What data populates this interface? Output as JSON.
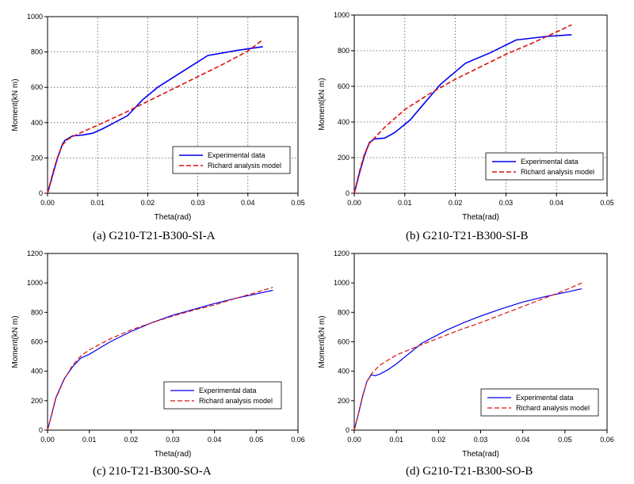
{
  "colors": {
    "experimental": "#0000ee",
    "model": "#dd1111",
    "grid": "#555555",
    "axis": "#000000"
  },
  "chart_data": [
    {
      "type": "line",
      "caption": "(a)  G210-T21-B300-SI-A",
      "xlabel": "Theta(rad)",
      "ylabel": "Moment(kN m)",
      "xlim": [
        0,
        0.05
      ],
      "ylim": [
        0,
        1000
      ],
      "xticks": [
        "0.00",
        "0.01",
        "0.02",
        "0.03",
        "0.04",
        "0.05"
      ],
      "yticks": [
        "0",
        "200",
        "400",
        "600",
        "800",
        "1000"
      ],
      "grid": true,
      "legend_position": "lower-right",
      "series": [
        {
          "name": "Experimental data",
          "style": "solid",
          "x": [
            0,
            0.001,
            0.002,
            0.003,
            0.0035,
            0.005,
            0.007,
            0.009,
            0.011,
            0.013,
            0.016,
            0.019,
            0.022,
            0.027,
            0.032,
            0.038,
            0.043
          ],
          "y": [
            0,
            100,
            200,
            280,
            300,
            325,
            330,
            340,
            365,
            395,
            440,
            530,
            600,
            690,
            780,
            810,
            830
          ]
        },
        {
          "name": "Richard analysis model",
          "style": "dashed",
          "x": [
            0,
            0.001,
            0.002,
            0.003,
            0.004,
            0.006,
            0.01,
            0.015,
            0.02,
            0.025,
            0.03,
            0.035,
            0.04,
            0.043
          ],
          "y": [
            0,
            110,
            205,
            275,
            305,
            335,
            385,
            450,
            520,
            590,
            660,
            730,
            805,
            870
          ]
        }
      ]
    },
    {
      "type": "line",
      "caption": "(b)  G210-T21-B300-SI-B",
      "xlabel": "Theta(rad)",
      "ylabel": "Moment(kN m)",
      "xlim": [
        0,
        0.05
      ],
      "ylim": [
        0,
        1000
      ],
      "xticks": [
        "0.00",
        "0.01",
        "0.02",
        "0.03",
        "0.04",
        "0.05"
      ],
      "yticks": [
        "0",
        "200",
        "400",
        "600",
        "800",
        "1000"
      ],
      "grid": true,
      "legend_position": "lower-right",
      "series": [
        {
          "name": "Experimental data",
          "style": "solid",
          "x": [
            0,
            0.001,
            0.002,
            0.003,
            0.004,
            0.006,
            0.008,
            0.011,
            0.014,
            0.017,
            0.022,
            0.027,
            0.032,
            0.038,
            0.043
          ],
          "y": [
            0,
            110,
            210,
            285,
            305,
            310,
            340,
            410,
            510,
            610,
            730,
            790,
            860,
            880,
            890
          ]
        },
        {
          "name": "Richard analysis model",
          "style": "dashed",
          "x": [
            0,
            0.001,
            0.002,
            0.003,
            0.004,
            0.006,
            0.01,
            0.015,
            0.02,
            0.025,
            0.03,
            0.035,
            0.04,
            0.043
          ],
          "y": [
            0,
            120,
            220,
            280,
            310,
            370,
            470,
            560,
            640,
            710,
            780,
            840,
            905,
            945
          ]
        }
      ]
    },
    {
      "type": "line",
      "caption": "(c)  210-T21-B300-SO-A",
      "xlabel": "Theta(rad)",
      "ylabel": "Moment(kN m)",
      "xlim": [
        0,
        0.06
      ],
      "ylim": [
        0,
        1200
      ],
      "xticks": [
        "0.00",
        "0.01",
        "0.02",
        "0.03",
        "0.04",
        "0.05",
        "0.06"
      ],
      "yticks": [
        "0",
        "200",
        "400",
        "600",
        "800",
        "1000",
        "1200"
      ],
      "grid": false,
      "legend_position": "lower-right",
      "series": [
        {
          "name": "Experimental data",
          "style": "solid",
          "x": [
            0,
            0.001,
            0.002,
            0.004,
            0.006,
            0.008,
            0.01,
            0.015,
            0.02,
            0.025,
            0.03,
            0.035,
            0.04,
            0.045,
            0.05,
            0.054
          ],
          "y": [
            0,
            110,
            220,
            350,
            430,
            490,
            515,
            600,
            670,
            730,
            780,
            820,
            860,
            895,
            925,
            950
          ]
        },
        {
          "name": "Richard analysis model",
          "style": "dashed",
          "x": [
            0,
            0.001,
            0.002,
            0.004,
            0.006,
            0.008,
            0.01,
            0.015,
            0.02,
            0.025,
            0.03,
            0.035,
            0.04,
            0.045,
            0.05,
            0.054
          ],
          "y": [
            0,
            105,
            215,
            345,
            440,
            505,
            545,
            620,
            680,
            730,
            775,
            815,
            850,
            895,
            935,
            970
          ]
        }
      ]
    },
    {
      "type": "line",
      "caption": "(d)  G210-T21-B300-SO-B",
      "xlabel": "Theta(rad)",
      "ylabel": "Moment(kN m)",
      "xlim": [
        0,
        0.06
      ],
      "ylim": [
        0,
        1200
      ],
      "xticks": [
        "0.00",
        "0.01",
        "0.02",
        "0.03",
        "0.04",
        "0.05",
        "0.06"
      ],
      "yticks": [
        "0",
        "200",
        "400",
        "600",
        "800",
        "1000",
        "1200"
      ],
      "grid": false,
      "legend_position": "lower-right",
      "series": [
        {
          "name": "Experimental data",
          "style": "solid",
          "x": [
            0,
            0.001,
            0.002,
            0.003,
            0.004,
            0.005,
            0.006,
            0.008,
            0.01,
            0.013,
            0.016,
            0.02,
            0.022,
            0.026,
            0.03,
            0.035,
            0.04,
            0.045,
            0.05,
            0.054
          ],
          "y": [
            0,
            110,
            230,
            330,
            375,
            370,
            380,
            410,
            450,
            520,
            590,
            650,
            680,
            730,
            775,
            825,
            870,
            905,
            935,
            960
          ]
        },
        {
          "name": "Richard analysis model",
          "style": "dashed",
          "x": [
            0,
            0.001,
            0.002,
            0.003,
            0.004,
            0.006,
            0.01,
            0.015,
            0.02,
            0.025,
            0.03,
            0.035,
            0.04,
            0.045,
            0.05,
            0.054
          ],
          "y": [
            0,
            115,
            235,
            330,
            380,
            440,
            510,
            570,
            625,
            680,
            730,
            785,
            840,
            895,
            950,
            1000
          ]
        }
      ]
    }
  ]
}
